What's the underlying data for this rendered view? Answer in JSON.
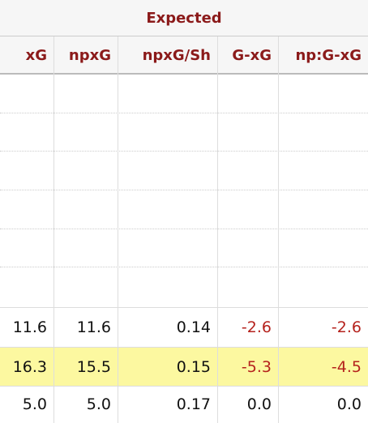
{
  "table": {
    "group": "Expected",
    "columns": [
      "xG",
      "npxG",
      "npxG/Sh",
      "G-xG",
      "np:G-xG"
    ],
    "rows": [
      [
        "11.6",
        "11.6",
        "0.14",
        "-2.6",
        "-2.6"
      ],
      [
        "16.3",
        "15.5",
        "0.15",
        "-5.3",
        "-4.5"
      ],
      [
        "5.0",
        "5.0",
        "0.17",
        "0.0",
        "0.0"
      ]
    ],
    "highlight_row": 1
  }
}
